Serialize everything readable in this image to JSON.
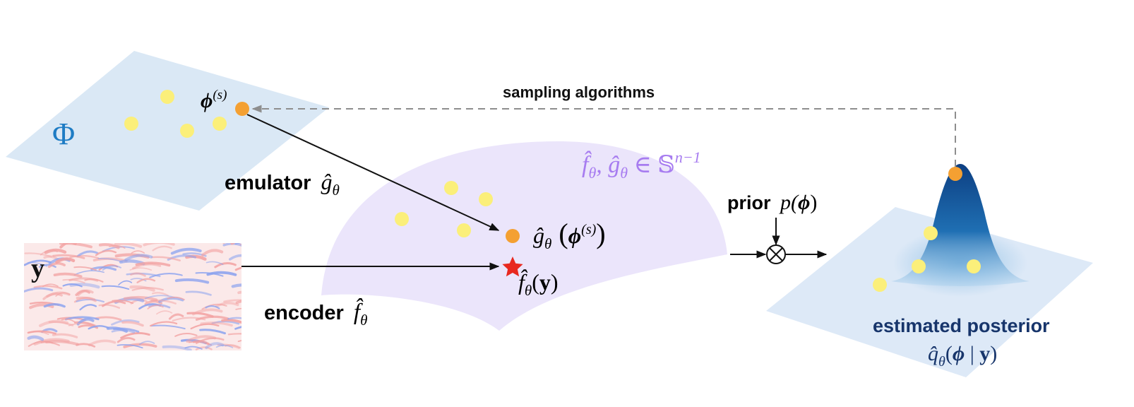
{
  "colors": {
    "parameter_plane": "#dae8f5",
    "latent_sphere": "#ebe5fb",
    "posterior_plane": "#dde9f7",
    "sample_point": "#fbef7a",
    "selected_point": "#f4a032",
    "star": "#e8281f",
    "arrow": "#111111",
    "dashed_arrow": "#8e8e8e",
    "phi_symbol": "#1e7cc4",
    "sphere_label": "#a77cf0",
    "posterior_label": "#17356b",
    "field_red": "#f2a2a2",
    "field_blue": "#8aa2ef",
    "gaussian_dark": "#0d3f82",
    "gaussian_light": "#8fc3e8"
  },
  "icons": {
    "target_point": "star-icon",
    "product_operator": "circled-times-icon"
  },
  "labels": {
    "sampling": "sampling algorithms",
    "phi_space": "Φ",
    "phi_sample": "ϕ",
    "phi_sample_sup": "(s)",
    "emulator_word": "emulator",
    "emulator_sym": "ĝ",
    "emulator_sub": "θ",
    "sphere_f": "f̂",
    "sphere_sub1": "θ",
    "sphere_g": ", ĝ",
    "sphere_sub2": "θ",
    "sphere_in": " ∈ 𝕊",
    "sphere_sup": "n−1",
    "prior_word": "prior",
    "prior_sym": "p(",
    "prior_phi": "ϕ",
    "prior_close": ")",
    "g_of_phi_g": "ĝ",
    "g_of_phi_sub": "θ",
    "g_of_phi_open": " (",
    "g_of_phi_phi": "ϕ",
    "g_of_phi_sup": "(s)",
    "g_of_phi_close": ")",
    "f_of_y_f": "f̂",
    "f_of_y_sub": "θ",
    "f_of_y_open": "(",
    "f_of_y_y": "y",
    "f_of_y_close": ")",
    "y_label": "y",
    "encoder_word": "encoder",
    "encoder_sym": "f̂",
    "encoder_sub": "θ",
    "posterior_title": "estimated posterior",
    "posterior_q": "q̂",
    "posterior_sub": "θ",
    "posterior_open": "(",
    "posterior_phi": "ϕ",
    "posterior_bar": " | ",
    "posterior_y": "y",
    "posterior_close": ")"
  }
}
